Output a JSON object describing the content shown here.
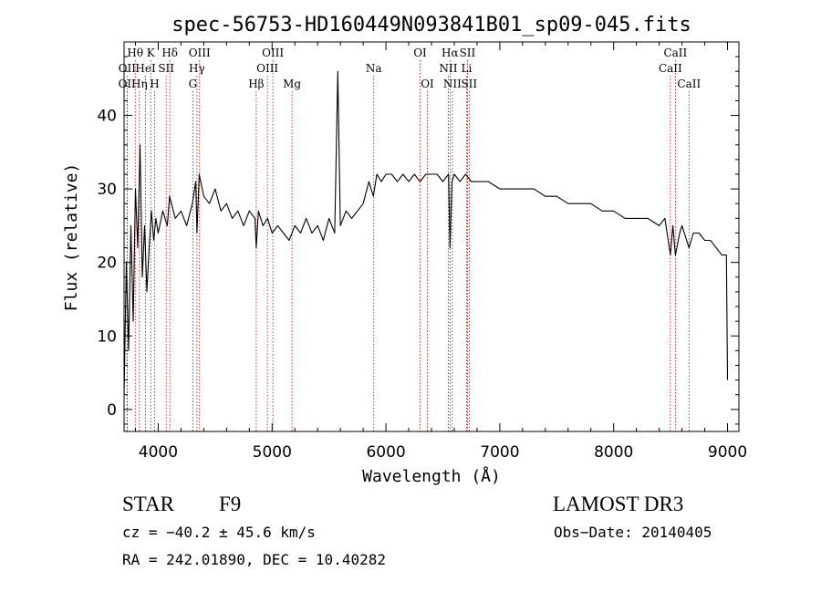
{
  "chart_data": {
    "type": "line",
    "title": "spec-56753-HD160449N093841B01_sp09-045.fits",
    "xlabel": "Wavelength (Å)",
    "ylabel": "Flux (relative)",
    "xlim": [
      3700,
      9100
    ],
    "ylim": [
      -3,
      50
    ],
    "xticks": [
      4000,
      5000,
      6000,
      7000,
      8000,
      9000
    ],
    "yticks": [
      0,
      10,
      20,
      30,
      40
    ],
    "grid": false,
    "series": [
      {
        "name": "spectrum",
        "x": [
          3700,
          3720,
          3740,
          3760,
          3780,
          3800,
          3820,
          3840,
          3860,
          3880,
          3900,
          3920,
          3940,
          3960,
          3980,
          4000,
          4040,
          4080,
          4100,
          4150,
          4200,
          4250,
          4300,
          4330,
          4340,
          4360,
          4400,
          4450,
          4500,
          4550,
          4600,
          4650,
          4700,
          4750,
          4800,
          4850,
          4861,
          4880,
          4920,
          4960,
          5000,
          5050,
          5100,
          5150,
          5200,
          5250,
          5300,
          5350,
          5400,
          5450,
          5500,
          5550,
          5577,
          5600,
          5650,
          5700,
          5750,
          5800,
          5850,
          5890,
          5920,
          5960,
          6000,
          6050,
          6100,
          6150,
          6200,
          6250,
          6300,
          6350,
          6400,
          6450,
          6500,
          6550,
          6563,
          6580,
          6600,
          6650,
          6700,
          6750,
          6800,
          6900,
          7000,
          7100,
          7200,
          7300,
          7400,
          7500,
          7600,
          7700,
          7800,
          7900,
          8000,
          8100,
          8200,
          8300,
          8400,
          8450,
          8498,
          8520,
          8542,
          8580,
          8600,
          8662,
          8700,
          8750,
          8800,
          8850,
          8900,
          8950,
          8990,
          9000
        ],
        "y": [
          2,
          20,
          8,
          25,
          12,
          30,
          22,
          36,
          18,
          25,
          16,
          22,
          27,
          23,
          26,
          24,
          27,
          25,
          29,
          26,
          27,
          25,
          28,
          31,
          24,
          32,
          29,
          28,
          30,
          27,
          28,
          26,
          27,
          25,
          27,
          26,
          22,
          27,
          25,
          26,
          24,
          25,
          24,
          23,
          25,
          24,
          26,
          24,
          25,
          23,
          26,
          24,
          46,
          25,
          27,
          26,
          27,
          28,
          31,
          29,
          32,
          31,
          32,
          32,
          31,
          32,
          31,
          32,
          31,
          32,
          32,
          32,
          31,
          32,
          22,
          31,
          32,
          31,
          32,
          31,
          31,
          31,
          30,
          30,
          30,
          30,
          29,
          29,
          28,
          28,
          28,
          27,
          27,
          26,
          26,
          26,
          25,
          26,
          21,
          25,
          21,
          24,
          25,
          22,
          24,
          24,
          23,
          23,
          22,
          21,
          21,
          4
        ]
      }
    ],
    "line_markers": [
      {
        "label": "Hθ",
        "wavelength": 3798,
        "row": 1
      },
      {
        "label": "K",
        "wavelength": 3934,
        "row": 1
      },
      {
        "label": "Hδ",
        "wavelength": 4102,
        "row": 1
      },
      {
        "label": "OIII",
        "wavelength": 4363,
        "row": 1
      },
      {
        "label": "OIII",
        "wavelength": 5007,
        "row": 1
      },
      {
        "label": "OI",
        "wavelength": 6300,
        "row": 1
      },
      {
        "label": "Hα",
        "wavelength": 6563,
        "row": 1
      },
      {
        "label": "SII",
        "wavelength": 6716,
        "row": 1
      },
      {
        "label": "CaII",
        "wavelength": 8542,
        "row": 1
      },
      {
        "label": "OII",
        "wavelength": 3727,
        "row": 2
      },
      {
        "label": "HeI",
        "wavelength": 3889,
        "row": 2
      },
      {
        "label": "SII",
        "wavelength": 4070,
        "row": 2
      },
      {
        "label": "Hγ",
        "wavelength": 4340,
        "row": 2
      },
      {
        "label": "OIII",
        "wavelength": 4959,
        "row": 2
      },
      {
        "label": "Na",
        "wavelength": 5893,
        "row": 2
      },
      {
        "label": "NII",
        "wavelength": 6548,
        "row": 2
      },
      {
        "label": "Li",
        "wavelength": 6708,
        "row": 2
      },
      {
        "label": "CaII",
        "wavelength": 8498,
        "row": 2
      },
      {
        "label": "OII",
        "wavelength": 3726,
        "row": 3
      },
      {
        "label": "Hη",
        "wavelength": 3835,
        "row": 3
      },
      {
        "label": "H",
        "wavelength": 3968,
        "row": 3
      },
      {
        "label": "G",
        "wavelength": 4304,
        "row": 3
      },
      {
        "label": "Hβ",
        "wavelength": 4861,
        "row": 3
      },
      {
        "label": "Mg",
        "wavelength": 5175,
        "row": 3
      },
      {
        "label": "OI",
        "wavelength": 6364,
        "row": 3
      },
      {
        "label": "NII",
        "wavelength": 6583,
        "row": 3
      },
      {
        "label": "SII",
        "wavelength": 6731,
        "row": 3
      },
      {
        "label": "CaII",
        "wavelength": 8662,
        "row": 3
      }
    ]
  },
  "info": {
    "object_class": "STAR",
    "subclass": "F9",
    "survey": "LAMOST DR3",
    "redshift": "cz = −40.2 ± 45.6 km/s",
    "obs_date": "Obs−Date: 20140405",
    "coords": "RA = 242.01890, DEC =  10.40282"
  },
  "colors": {
    "marker": "#cc0000",
    "spectrum": "#000000",
    "axes": "#000000"
  }
}
